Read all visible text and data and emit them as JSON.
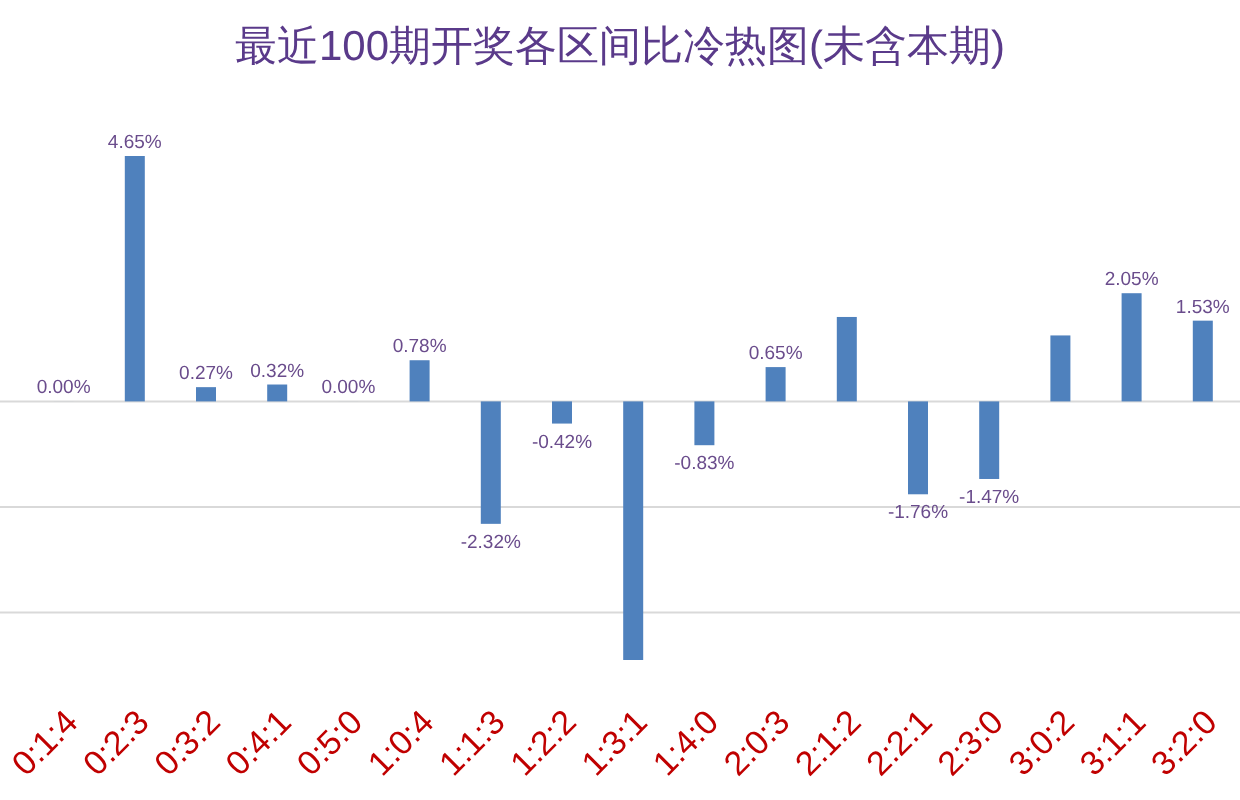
{
  "chart_data": {
    "type": "bar",
    "title": "最近100期开奖各区间比冷热图(未含本期)",
    "categories": [
      "0:1:4",
      "0:2:3",
      "0:3:2",
      "0:4:1",
      "0:5:0",
      "1:0:4",
      "1:1:3",
      "1:2:2",
      "1:3:1",
      "1:4:0",
      "2:0:3",
      "2:1:2",
      "2:2:1",
      "2:3:0",
      "3:0:2",
      "3:1:1",
      "3:2:0"
    ],
    "values": [
      0,
      4.65,
      0.27,
      0.32,
      0,
      0.78,
      -2.32,
      -0.42,
      -4.9,
      -0.83,
      0.65,
      1.6,
      -1.76,
      -1.47,
      1.25,
      2.05,
      1.53
    ],
    "value_labels": [
      "0.00%",
      "4.65%",
      "0.27%",
      "0.32%",
      "0.00%",
      "0.78%",
      "-2.32%",
      "-0.42%",
      null,
      "-0.83%",
      "0.65%",
      null,
      "-1.76%",
      "-1.47%",
      null,
      "2.05%",
      "1.53%"
    ],
    "color": "#4f81bd",
    "yticks": [
      {
        "value": -4,
        "label": null
      },
      {
        "value": -2,
        "label": null
      },
      {
        "value": 0,
        "label": null
      }
    ],
    "grid": "y"
  }
}
